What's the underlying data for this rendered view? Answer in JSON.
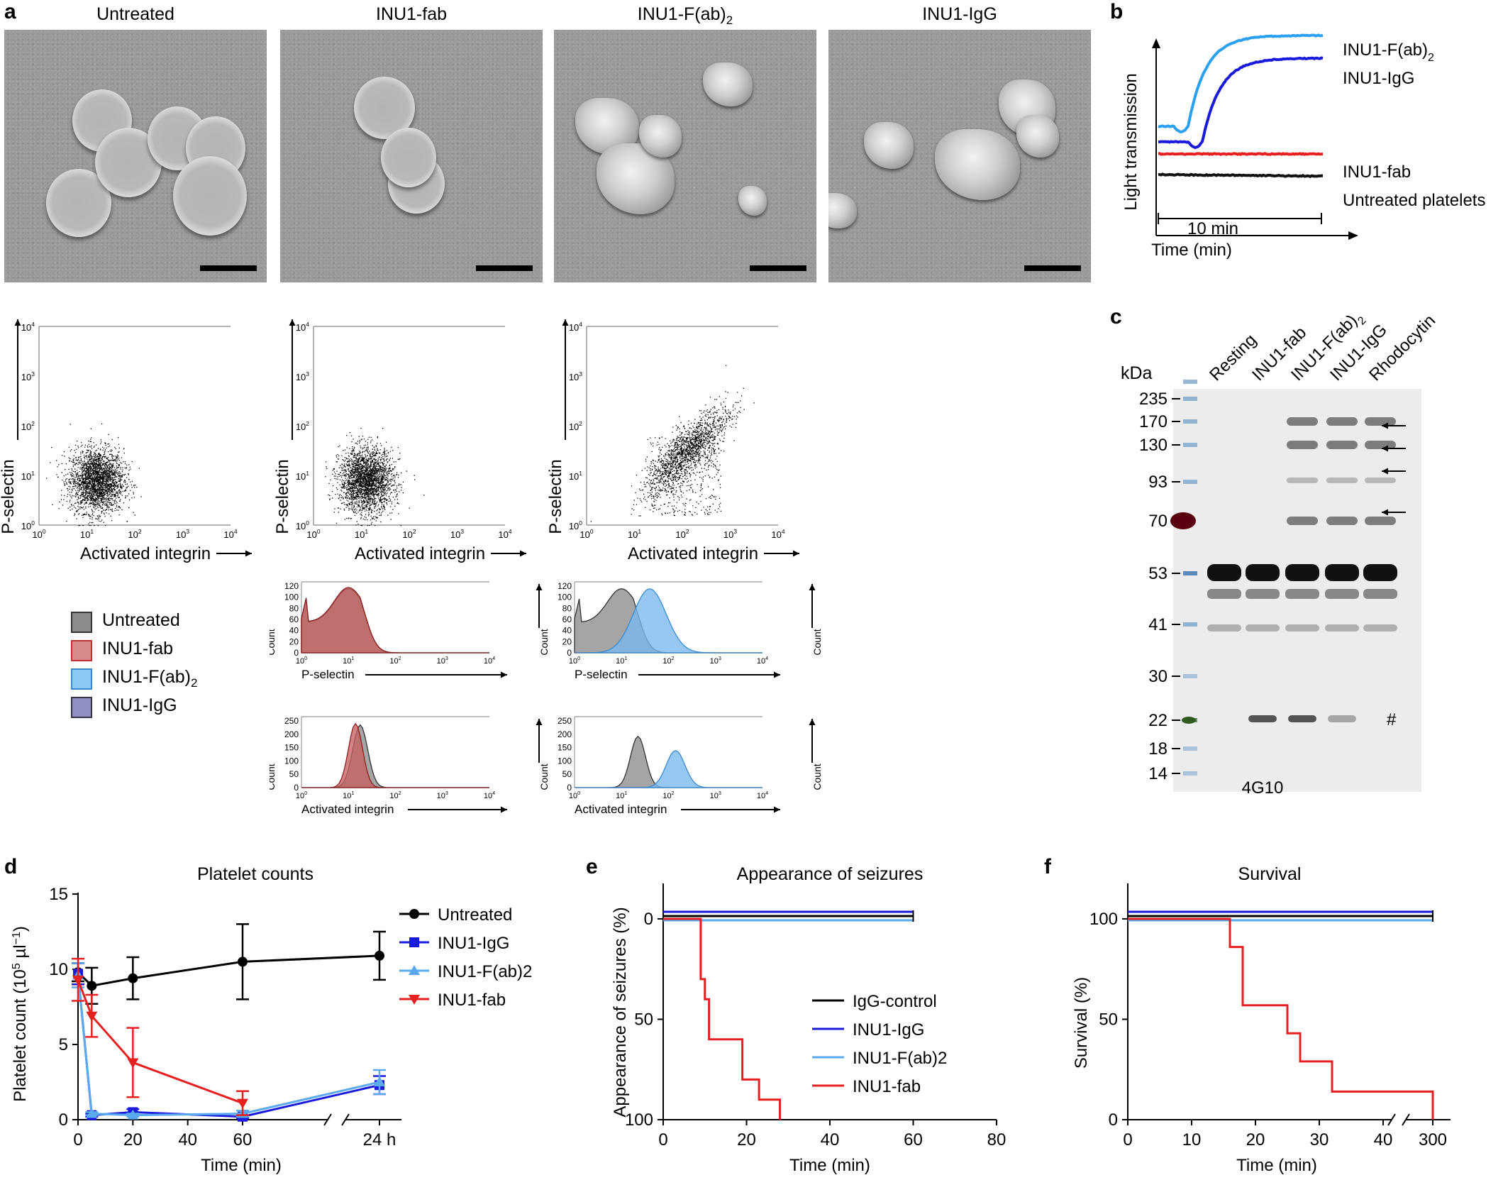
{
  "panels": {
    "a": "a",
    "b": "b",
    "c": "c",
    "d": "d",
    "e": "e",
    "f": "f"
  },
  "em": {
    "titles": [
      "Untreated",
      "INU1-fab",
      "INU1-F(ab)",
      "INU1-IgG"
    ],
    "fab2_sub": "2"
  },
  "flow": {
    "scatter_ylabel": "P-selectin",
    "scatter_xlabel": "Activated integrin",
    "ticks": [
      "10",
      "10",
      "10",
      "10",
      "10"
    ],
    "exps": [
      "0",
      "1",
      "2",
      "3",
      "4"
    ],
    "hist1_xlabel": "P-selectin",
    "hist2_xlabel": "Activated integrin",
    "hist_ylabel": "Count"
  },
  "flow_legend": [
    {
      "label": "Untreated",
      "sub": "",
      "color": "#8c8c8c"
    },
    {
      "label": "INU1-fab",
      "sub": "",
      "color": "#d98b8b"
    },
    {
      "label": "INU1-F(ab)",
      "sub": "2",
      "color": "#8ec8f5"
    },
    {
      "label": "INU1-IgG",
      "sub": "",
      "color": "#8f8fc3"
    }
  ],
  "lt": {
    "ylabel": "Light transmission",
    "xlabel": "Time (min)",
    "scalebar": "10 min",
    "labels": [
      {
        "text": "INU1-F(ab)",
        "sub": "2",
        "color": "#2aa0f0"
      },
      {
        "text": "INU1-IgG",
        "sub": "",
        "color": "#1a1adc"
      },
      {
        "text": "INU1-fab",
        "sub": "",
        "color": "#e61f1f"
      },
      {
        "text": "Untreated platelets",
        "sub": "",
        "color": "#111111"
      }
    ]
  },
  "blot": {
    "kda": "kDa",
    "lanes": [
      "Resting",
      "INU1-fab",
      "INU1-F(ab)",
      "INU1-IgG",
      "Rhodocytin"
    ],
    "lane_sub": [
      "",
      "",
      "2",
      "",
      ""
    ],
    "markers": [
      "235",
      "170",
      "130",
      "93",
      "70",
      "53",
      "41",
      "30",
      "22",
      "18",
      "14"
    ],
    "antibody": "4G10",
    "hash": "#"
  },
  "chart_data": [
    {
      "type": "line",
      "title": "Platelet counts",
      "xlabel": "Time (min)",
      "ylabel": "Platelet count (10",
      "ylabel_sup": "5",
      "ylabel_unit": " µl",
      "ylabel_sup2": "−1",
      "ylabel_end": ")",
      "ylim": [
        0,
        15
      ],
      "x_ticks": [
        "0",
        "20",
        "40",
        "60"
      ],
      "x_break_label": "24 h",
      "y_ticks": [
        "0",
        "5",
        "10",
        "15"
      ],
      "legend_placement": "top-right",
      "x": [
        "0",
        "5",
        "20",
        "60",
        "24 h"
      ],
      "series": [
        {
          "name": "Untreated",
          "color": "#000000",
          "marker": "circle",
          "values": [
            9.8,
            8.9,
            9.4,
            10.5,
            10.9
          ],
          "err": [
            0.6,
            1.2,
            1.4,
            2.5,
            1.6
          ]
        },
        {
          "name": "INU1-IgG",
          "color": "#1a1adc",
          "marker": "square",
          "values": [
            9.7,
            0.3,
            0.5,
            0.2,
            2.3
          ],
          "err": [
            0.7,
            0.1,
            0.2,
            0.1,
            0.6
          ]
        },
        {
          "name": "INU1-F(ab)2",
          "color": "#5aaaf0",
          "marker": "triangle",
          "values": [
            9.6,
            0.4,
            0.3,
            0.4,
            2.5
          ],
          "err": [
            0.8,
            0.1,
            0.1,
            0.2,
            0.8
          ]
        },
        {
          "name": "INU1-fab",
          "color": "#e61f1f",
          "marker": "triangle-down",
          "values": [
            9.3,
            6.9,
            3.8,
            1.1,
            null
          ],
          "err": [
            1.4,
            1.4,
            2.3,
            0.8,
            null
          ]
        }
      ]
    },
    {
      "type": "line",
      "title": "Appearance of seizures",
      "xlabel": "Time (min)",
      "ylabel": "Appearance of seizures (%)",
      "xlim": [
        0,
        80
      ],
      "ylim": [
        0,
        100
      ],
      "y_inverted": true,
      "x_ticks": [
        "0",
        "20",
        "40",
        "60",
        "80"
      ],
      "y_ticks": [
        "0",
        "50",
        "100"
      ],
      "series": [
        {
          "name": "IgG-control",
          "color": "#000000",
          "steps": [
            [
              0,
              0
            ],
            [
              60,
              0
            ]
          ]
        },
        {
          "name": "INU1-IgG",
          "color": "#1a1adc",
          "steps": [
            [
              0,
              0
            ],
            [
              60,
              0
            ]
          ]
        },
        {
          "name": "INU1-F(ab)2",
          "color": "#5aaaf0",
          "steps": [
            [
              0,
              0
            ],
            [
              60,
              0
            ]
          ]
        },
        {
          "name": "INU1-fab",
          "color": "#e61f1f",
          "steps": [
            [
              0,
              0
            ],
            [
              9,
              0
            ],
            [
              9,
              30
            ],
            [
              10,
              30
            ],
            [
              10,
              40
            ],
            [
              11,
              40
            ],
            [
              11,
              60
            ],
            [
              19,
              60
            ],
            [
              19,
              80
            ],
            [
              23,
              80
            ],
            [
              23,
              90
            ],
            [
              28,
              90
            ],
            [
              28,
              100
            ]
          ]
        }
      ]
    },
    {
      "type": "line",
      "title": "Survival",
      "xlabel": "Time (min)",
      "ylabel": "Survival (%)",
      "ylim": [
        0,
        100
      ],
      "x_ticks": [
        "0",
        "10",
        "20",
        "30",
        "40"
      ],
      "x_break_label": "300",
      "y_ticks": [
        "0",
        "50",
        "100"
      ],
      "series": [
        {
          "name": "IgG-control",
          "color": "#000000",
          "steps": [
            [
              0,
              100
            ],
            [
              300,
              100
            ]
          ]
        },
        {
          "name": "INU1-IgG",
          "color": "#1a1adc",
          "steps": [
            [
              0,
              100
            ],
            [
              300,
              100
            ]
          ]
        },
        {
          "name": "INU1-F(ab)2",
          "color": "#5aaaf0",
          "steps": [
            [
              0,
              100
            ],
            [
              300,
              100
            ]
          ]
        },
        {
          "name": "INU1-fab",
          "color": "#e61f1f",
          "steps": [
            [
              0,
              100
            ],
            [
              16,
              100
            ],
            [
              16,
              86
            ],
            [
              18,
              86
            ],
            [
              18,
              57
            ],
            [
              25,
              57
            ],
            [
              25,
              43
            ],
            [
              27,
              43
            ],
            [
              27,
              29
            ],
            [
              32,
              29
            ],
            [
              32,
              14
            ],
            [
              300,
              14
            ],
            [
              300,
              0
            ]
          ]
        }
      ]
    }
  ]
}
